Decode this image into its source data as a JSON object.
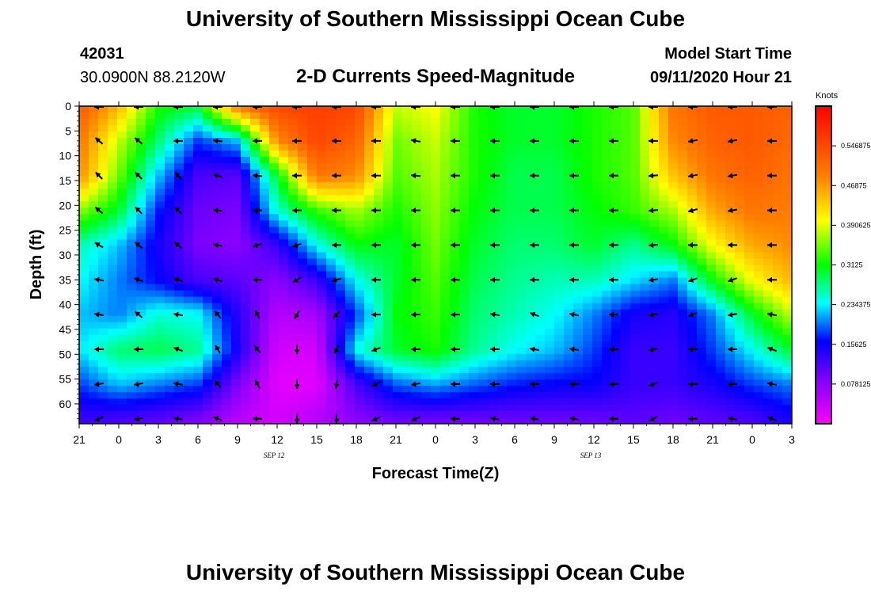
{
  "header": {
    "title": "University of Southern Mississippi Ocean Cube",
    "station_id": "42031",
    "location": "30.0900N 88.2120W",
    "subtitle": "2-D Currents Speed-Magnitude",
    "model_label": "Model Start Time",
    "model_time": "09/11/2020 Hour 21"
  },
  "footer": {
    "title": "University of Southern Mississippi Ocean Cube"
  },
  "chart_data": {
    "type": "heatmap",
    "title": "2-D Currents Speed-Magnitude",
    "xlabel": "Forecast Time(Z)",
    "ylabel": "Depth (ft)",
    "x_hours": [
      0,
      3,
      6,
      9,
      12,
      15,
      18,
      21,
      24,
      27,
      30,
      33,
      36,
      39,
      42,
      45,
      48,
      51,
      54
    ],
    "x_tick_labels": [
      "21",
      "0",
      "3",
      "6",
      "9",
      "12",
      "15",
      "18",
      "21",
      "0",
      "3",
      "6",
      "9",
      "12",
      "15",
      "18",
      "21",
      "0",
      "3"
    ],
    "date_labels": [
      {
        "text": "SEP 12",
        "hour": 15
      },
      {
        "text": "SEP 13",
        "hour": 39
      }
    ],
    "y_ticks": [
      0,
      5,
      10,
      15,
      20,
      25,
      30,
      35,
      40,
      45,
      50,
      55,
      60
    ],
    "ylim": [
      0,
      64
    ],
    "colorbar": {
      "unit": "Knots",
      "range": [
        0,
        0.625
      ],
      "tick_values": [
        0.078125,
        0.15625,
        0.234375,
        0.3125,
        0.390625,
        0.46875,
        0.546875
      ],
      "tick_labels": [
        "0.078125",
        "0.15625",
        "0.234375",
        "0.3125",
        "0.390625",
        "0.46875",
        "0.546875"
      ]
    },
    "grid_x_hours": [
      0,
      3,
      6,
      9,
      12,
      15,
      18,
      21,
      24,
      27,
      30,
      33,
      36,
      39,
      42,
      45,
      48,
      51,
      54
    ],
    "grid_depths": [
      0,
      7,
      14,
      21,
      28,
      35,
      42,
      49,
      56,
      63
    ],
    "speed": [
      [
        0.53,
        0.45,
        0.32,
        0.3,
        0.5,
        0.55,
        0.56,
        0.55,
        0.38,
        0.4,
        0.32,
        0.3,
        0.3,
        0.32,
        0.34,
        0.5,
        0.53,
        0.53,
        0.52
      ],
      [
        0.5,
        0.38,
        0.28,
        0.18,
        0.22,
        0.48,
        0.55,
        0.52,
        0.35,
        0.38,
        0.32,
        0.3,
        0.3,
        0.32,
        0.34,
        0.48,
        0.52,
        0.53,
        0.51
      ],
      [
        0.48,
        0.35,
        0.22,
        0.12,
        0.11,
        0.3,
        0.5,
        0.48,
        0.34,
        0.37,
        0.32,
        0.29,
        0.29,
        0.32,
        0.34,
        0.44,
        0.5,
        0.52,
        0.5
      ],
      [
        0.36,
        0.3,
        0.17,
        0.1,
        0.09,
        0.25,
        0.33,
        0.37,
        0.32,
        0.36,
        0.31,
        0.29,
        0.29,
        0.31,
        0.33,
        0.37,
        0.46,
        0.5,
        0.49
      ],
      [
        0.26,
        0.22,
        0.15,
        0.09,
        0.08,
        0.13,
        0.24,
        0.31,
        0.3,
        0.35,
        0.3,
        0.28,
        0.28,
        0.3,
        0.27,
        0.31,
        0.4,
        0.46,
        0.48
      ],
      [
        0.24,
        0.2,
        0.16,
        0.12,
        0.11,
        0.08,
        0.13,
        0.24,
        0.3,
        0.34,
        0.29,
        0.27,
        0.26,
        0.26,
        0.23,
        0.2,
        0.31,
        0.4,
        0.45
      ],
      [
        0.22,
        0.2,
        0.25,
        0.24,
        0.14,
        0.05,
        0.06,
        0.18,
        0.31,
        0.33,
        0.28,
        0.26,
        0.24,
        0.2,
        0.15,
        0.14,
        0.2,
        0.3,
        0.38
      ],
      [
        0.23,
        0.28,
        0.29,
        0.27,
        0.15,
        0.03,
        0.03,
        0.24,
        0.3,
        0.32,
        0.27,
        0.24,
        0.22,
        0.18,
        0.13,
        0.13,
        0.18,
        0.24,
        0.3
      ],
      [
        0.18,
        0.22,
        0.2,
        0.18,
        0.09,
        0.02,
        0.02,
        0.12,
        0.19,
        0.21,
        0.19,
        0.17,
        0.16,
        0.16,
        0.13,
        0.13,
        0.15,
        0.18,
        0.2
      ],
      [
        0.13,
        0.12,
        0.11,
        0.09,
        0.05,
        0.03,
        0.05,
        0.08,
        0.1,
        0.1,
        0.1,
        0.1,
        0.1,
        0.1,
        0.11,
        0.1,
        0.11,
        0.12,
        0.15
      ]
    ],
    "vector_hours": [
      1.5,
      4.5,
      7.5,
      10.5,
      13.5,
      16.5,
      19.5,
      22.5,
      25.5,
      28.5,
      31.5,
      34.5,
      37.5,
      40.5,
      43.5,
      46.5,
      49.5,
      52.5
    ],
    "vector_depths": [
      0,
      7,
      14,
      21,
      28,
      35,
      42,
      49,
      56,
      63
    ],
    "vector_directions_deg": [
      [
        180,
        180,
        180,
        180,
        180,
        180,
        180,
        180,
        180,
        180,
        180,
        180,
        180,
        180,
        180,
        180,
        180,
        180
      ],
      [
        140,
        140,
        180,
        175,
        180,
        180,
        180,
        180,
        170,
        180,
        180,
        180,
        180,
        180,
        180,
        190,
        190,
        180
      ],
      [
        135,
        135,
        130,
        160,
        175,
        180,
        180,
        180,
        175,
        180,
        180,
        180,
        180,
        180,
        185,
        190,
        190,
        180
      ],
      [
        140,
        135,
        135,
        175,
        180,
        180,
        180,
        180,
        180,
        180,
        180,
        180,
        180,
        180,
        185,
        195,
        190,
        180
      ],
      [
        150,
        140,
        140,
        170,
        200,
        200,
        180,
        180,
        180,
        180,
        180,
        180,
        180,
        180,
        185,
        180,
        180,
        180
      ],
      [
        170,
        160,
        160,
        160,
        180,
        210,
        195,
        180,
        180,
        180,
        180,
        180,
        180,
        180,
        190,
        200,
        200,
        180
      ],
      [
        170,
        140,
        170,
        130,
        120,
        240,
        225,
        180,
        180,
        180,
        170,
        160,
        170,
        180,
        190,
        200,
        190,
        170
      ],
      [
        180,
        180,
        160,
        120,
        130,
        270,
        240,
        200,
        180,
        180,
        180,
        170,
        170,
        180,
        190,
        180,
        180,
        160
      ],
      [
        190,
        190,
        170,
        130,
        120,
        270,
        260,
        210,
        190,
        180,
        180,
        180,
        180,
        180,
        200,
        180,
        180,
        170
      ],
      [
        200,
        190,
        170,
        160,
        180,
        270,
        270,
        200,
        200,
        180,
        170,
        170,
        170,
        180,
        210,
        180,
        170,
        160
      ]
    ],
    "colors": {
      "colormap": [
        "#ff00ff",
        "#8000ff",
        "#0000ff",
        "#00ffff",
        "#00ff00",
        "#ffff00",
        "#ff8000",
        "#ff0000"
      ],
      "arrow": "#000000",
      "frame": "#000000"
    }
  }
}
